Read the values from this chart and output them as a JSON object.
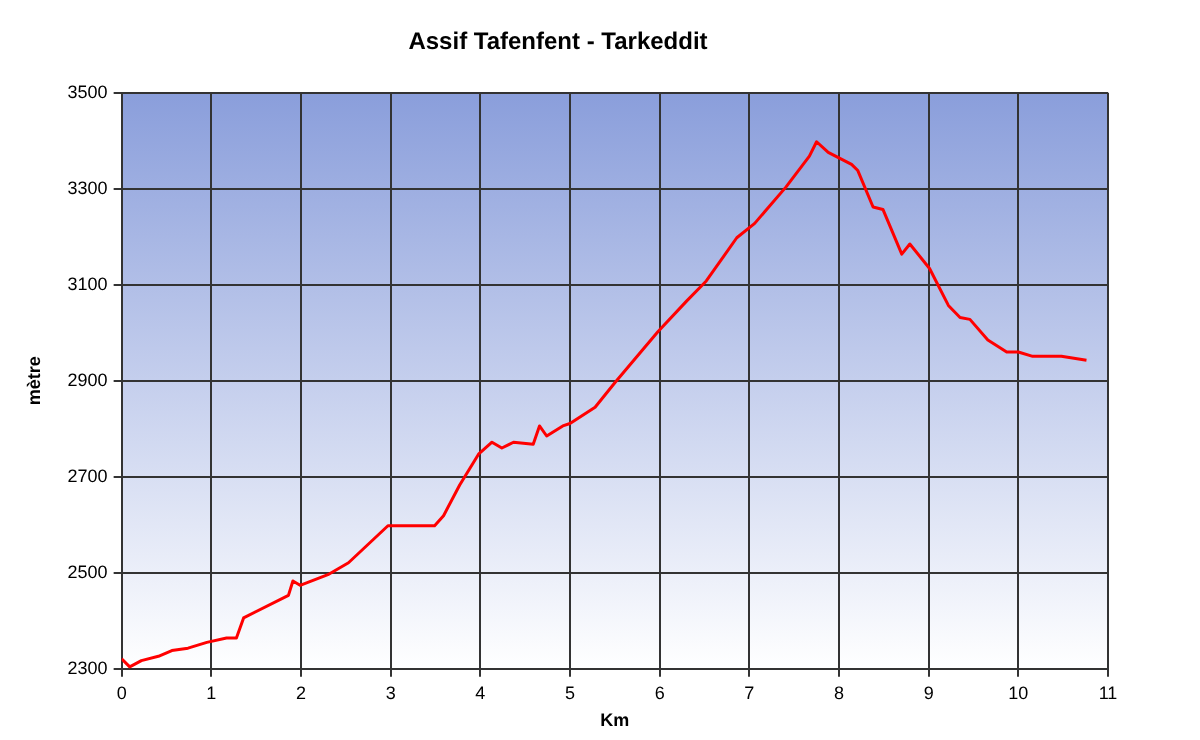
{
  "chart_data": {
    "type": "line",
    "title": "Assif Tafenfent - Tarkeddit",
    "xlabel": "Km",
    "ylabel": "mètre",
    "xlim": [
      0,
      11
    ],
    "xticks": [
      0,
      1,
      2,
      3,
      4,
      5,
      6,
      7,
      8,
      9,
      10,
      11
    ],
    "ylim": [
      2300,
      3500
    ],
    "yticks": [
      2300,
      2500,
      2700,
      2900,
      3100,
      3300,
      3500
    ],
    "grid": true,
    "legend": false,
    "marker": "none",
    "line_style": "solid",
    "series": [
      {
        "color": "#ff0000",
        "x": [
          0,
          0.09,
          0.22,
          0.41,
          0.56,
          0.74,
          0.95,
          1.17,
          1.28,
          1.36,
          1.86,
          1.91,
          1.99,
          2.3,
          2.53,
          2.97,
          3.49,
          3.59,
          3.77,
          3.98,
          4.13,
          4.24,
          4.37,
          4.59,
          4.66,
          4.74,
          4.92,
          5.0,
          5.28,
          5.5,
          5.98,
          6.3,
          6.52,
          6.86,
          7.06,
          7.41,
          7.67,
          7.75,
          7.88,
          8.14,
          8.21,
          8.38,
          8.49,
          8.7,
          8.79,
          9.01,
          9.22,
          9.35,
          9.46,
          9.66,
          9.87,
          10.0,
          10.16,
          10.48,
          10.76
        ],
        "values": [
          2321,
          2304,
          2317,
          2326,
          2338,
          2343,
          2355,
          2364,
          2364,
          2406,
          2453,
          2483,
          2474,
          2496,
          2521,
          2598,
          2598,
          2619,
          2683,
          2747,
          2772,
          2760,
          2772,
          2768,
          2806,
          2785,
          2806,
          2811,
          2845,
          2896,
          3002,
          3066,
          3108,
          3198,
          3228,
          3304,
          3368,
          3398,
          3376,
          3351,
          3338,
          3262,
          3257,
          3164,
          3185,
          3134,
          3057,
          3032,
          3028,
          2985,
          2960,
          2960,
          2951,
          2951,
          2943
        ]
      }
    ]
  }
}
